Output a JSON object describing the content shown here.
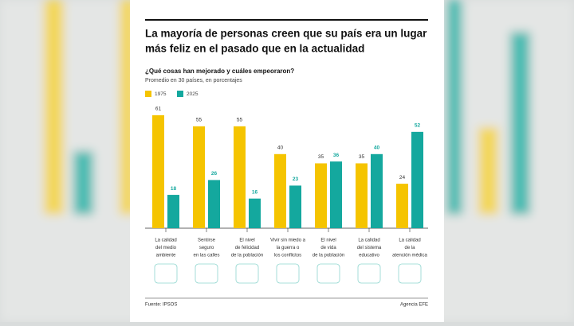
{
  "chart_data": {
    "type": "bar",
    "title": [
      "La mayoría de personas creen que su país era un lugar",
      "más feliz en el pasado que en la actualidad"
    ],
    "subtitle": "¿Qué cosas han mejorado y cuáles empeoraron?",
    "note": "Promedio en 30 países, en porcentajes",
    "categories": [
      [
        "La calidad",
        "del medio",
        "ambiente"
      ],
      [
        "Sentirse",
        "seguro",
        "en las calles"
      ],
      [
        "El nivel",
        "de felicidad",
        "de la población"
      ],
      [
        "Vivir sin miedo a",
        "la guerra o",
        "los conflictos"
      ],
      [
        "El nivel",
        "de vida",
        "de la población"
      ],
      [
        "La calidad",
        "del sistema",
        "educativo"
      ],
      [
        "La calidad",
        "de la",
        "atención médica"
      ]
    ],
    "series": [
      {
        "name": "1975",
        "color": "#f5c400",
        "values": [
          61,
          55,
          55,
          40,
          35,
          35,
          24
        ]
      },
      {
        "name": "2025",
        "color": "#14a89e",
        "values": [
          18,
          26,
          16,
          23,
          36,
          40,
          52
        ]
      }
    ],
    "source": "Fuente: IPSOS",
    "credit": "Agencia EFE"
  }
}
